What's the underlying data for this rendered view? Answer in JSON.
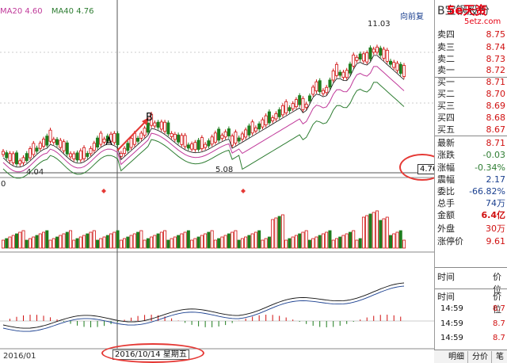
{
  "legend": {
    "ma20": "MA20 4.60",
    "ma40": "MA40 4.76"
  },
  "fq_label": "向前复",
  "annotations": {
    "point_a": "A",
    "point_b": "B",
    "high_price": "11.03",
    "low_price": "4.04",
    "mid_price": "5.08",
    "right_price": "4.76",
    "volume_zero": "0"
  },
  "axis": {
    "left_date": "2016/01",
    "crosshair_date": "2016/10/14 星期五"
  },
  "stock_title": "B宝钢股份",
  "logo": {
    "main": "5e天资",
    "sub": "5etz.com"
  },
  "order_book": {
    "sell": [
      {
        "label": "卖四",
        "price": "8.75"
      },
      {
        "label": "卖三",
        "price": "8.74"
      },
      {
        "label": "卖二",
        "price": "8.73"
      },
      {
        "label": "卖一",
        "price": "8.72"
      }
    ],
    "buy": [
      {
        "label": "买一",
        "price": "8.71"
      },
      {
        "label": "买二",
        "price": "8.70"
      },
      {
        "label": "买三",
        "price": "8.69"
      },
      {
        "label": "买四",
        "price": "8.68"
      },
      {
        "label": "买五",
        "price": "8.67"
      }
    ]
  },
  "quote": [
    {
      "label": "最新",
      "value": "8.71"
    },
    {
      "label": "涨跌",
      "value": "-0.03"
    },
    {
      "label": "涨幅",
      "value": "-0.34%"
    },
    {
      "label": "震幅",
      "value": "2.17"
    },
    {
      "label": "委比",
      "value": "-66.82%"
    },
    {
      "label": "总手",
      "value": "74万"
    },
    {
      "label": "金额",
      "value": "6.4亿"
    },
    {
      "label": "外盘",
      "value": "30万"
    },
    {
      "label": "涨停价",
      "value": "9.61"
    }
  ],
  "ticks": {
    "header_time": "时间",
    "header_price": "价位",
    "rows": [
      {
        "time": "14:59",
        "price": "8.7"
      },
      {
        "time": "14:59",
        "price": "8.7"
      },
      {
        "time": "14:59",
        "price": "8.7"
      }
    ]
  },
  "tabs": [
    "明细",
    "分价",
    "笔"
  ],
  "colors": {
    "up": "#d01010",
    "down": "#1e7d1e",
    "ma20": "#c0399a",
    "ma40": "#2e7d32",
    "ring": "#e53935"
  }
}
